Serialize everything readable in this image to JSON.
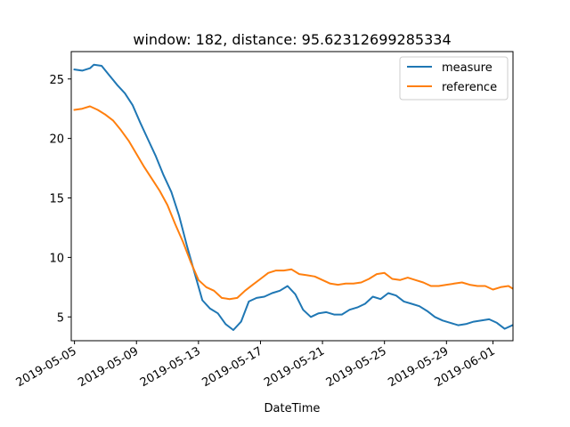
{
  "chart_data": {
    "type": "line",
    "title": "window: 182, distance: 95.62312699285334",
    "xlabel": "DateTime",
    "ylabel": "",
    "xlim": [
      "2019-05-04T19:00",
      "2019-06-02T07:00"
    ],
    "ylim": [
      3.0,
      27.3
    ],
    "grid": false,
    "legend_position": "upper right",
    "x_ticks": [
      "2019-05-05",
      "2019-05-09",
      "2019-05-13",
      "2019-05-17",
      "2019-05-21",
      "2019-05-25",
      "2019-05-29",
      "2019-06-01"
    ],
    "y_ticks": [
      5,
      10,
      15,
      20,
      25
    ],
    "series": [
      {
        "name": "measure",
        "color": "#1f77b4",
        "points": [
          [
            "2019-05-05T00:00",
            25.8
          ],
          [
            "2019-05-05T12:00",
            25.7
          ],
          [
            "2019-05-06T00:00",
            25.9
          ],
          [
            "2019-05-06T06:00",
            26.2
          ],
          [
            "2019-05-06T18:00",
            26.1
          ],
          [
            "2019-05-07T06:00",
            25.3
          ],
          [
            "2019-05-07T18:00",
            24.5
          ],
          [
            "2019-05-08T06:00",
            23.8
          ],
          [
            "2019-05-08T18:00",
            22.8
          ],
          [
            "2019-05-09T06:00",
            21.3
          ],
          [
            "2019-05-09T18:00",
            19.9
          ],
          [
            "2019-05-10T06:00",
            18.5
          ],
          [
            "2019-05-10T18:00",
            16.9
          ],
          [
            "2019-05-11T06:00",
            15.5
          ],
          [
            "2019-05-11T18:00",
            13.5
          ],
          [
            "2019-05-12T06:00",
            11.0
          ],
          [
            "2019-05-12T18:00",
            8.7
          ],
          [
            "2019-05-13T06:00",
            6.4
          ],
          [
            "2019-05-13T18:00",
            5.7
          ],
          [
            "2019-05-14T06:00",
            5.3
          ],
          [
            "2019-05-14T18:00",
            4.4
          ],
          [
            "2019-05-15T06:00",
            3.9
          ],
          [
            "2019-05-15T18:00",
            4.6
          ],
          [
            "2019-05-16T06:00",
            6.3
          ],
          [
            "2019-05-16T18:00",
            6.6
          ],
          [
            "2019-05-17T06:00",
            6.7
          ],
          [
            "2019-05-17T18:00",
            7.0
          ],
          [
            "2019-05-18T06:00",
            7.2
          ],
          [
            "2019-05-18T18:00",
            7.6
          ],
          [
            "2019-05-19T06:00",
            6.9
          ],
          [
            "2019-05-19T18:00",
            5.6
          ],
          [
            "2019-05-20T06:00",
            5.0
          ],
          [
            "2019-05-20T18:00",
            5.3
          ],
          [
            "2019-05-21T06:00",
            5.4
          ],
          [
            "2019-05-21T18:00",
            5.2
          ],
          [
            "2019-05-22T06:00",
            5.2
          ],
          [
            "2019-05-22T18:00",
            5.6
          ],
          [
            "2019-05-23T06:00",
            5.8
          ],
          [
            "2019-05-23T18:00",
            6.1
          ],
          [
            "2019-05-24T06:00",
            6.7
          ],
          [
            "2019-05-24T18:00",
            6.5
          ],
          [
            "2019-05-25T06:00",
            7.0
          ],
          [
            "2019-05-25T18:00",
            6.8
          ],
          [
            "2019-05-26T06:00",
            6.3
          ],
          [
            "2019-05-26T18:00",
            6.1
          ],
          [
            "2019-05-27T06:00",
            5.9
          ],
          [
            "2019-05-27T18:00",
            5.5
          ],
          [
            "2019-05-28T06:00",
            5.0
          ],
          [
            "2019-05-28T18:00",
            4.7
          ],
          [
            "2019-05-29T06:00",
            4.5
          ],
          [
            "2019-05-29T18:00",
            4.3
          ],
          [
            "2019-05-30T06:00",
            4.4
          ],
          [
            "2019-05-30T18:00",
            4.6
          ],
          [
            "2019-05-31T06:00",
            4.7
          ],
          [
            "2019-05-31T18:00",
            4.8
          ],
          [
            "2019-06-01T06:00",
            4.5
          ],
          [
            "2019-06-01T18:00",
            4.0
          ],
          [
            "2019-06-02T06:00",
            4.3
          ]
        ]
      },
      {
        "name": "reference",
        "color": "#ff7f0e",
        "points": [
          [
            "2019-05-05T00:00",
            22.4
          ],
          [
            "2019-05-05T12:00",
            22.5
          ],
          [
            "2019-05-06T00:00",
            22.7
          ],
          [
            "2019-05-06T12:00",
            22.4
          ],
          [
            "2019-05-07T00:00",
            22.0
          ],
          [
            "2019-05-07T12:00",
            21.5
          ],
          [
            "2019-05-08T00:00",
            20.7
          ],
          [
            "2019-05-08T12:00",
            19.8
          ],
          [
            "2019-05-09T00:00",
            18.7
          ],
          [
            "2019-05-09T12:00",
            17.6
          ],
          [
            "2019-05-10T00:00",
            16.6
          ],
          [
            "2019-05-10T12:00",
            15.6
          ],
          [
            "2019-05-11T00:00",
            14.4
          ],
          [
            "2019-05-11T12:00",
            12.8
          ],
          [
            "2019-05-12T00:00",
            11.3
          ],
          [
            "2019-05-12T12:00",
            9.6
          ],
          [
            "2019-05-13T00:00",
            8.1
          ],
          [
            "2019-05-13T12:00",
            7.5
          ],
          [
            "2019-05-14T00:00",
            7.2
          ],
          [
            "2019-05-14T12:00",
            6.6
          ],
          [
            "2019-05-15T00:00",
            6.5
          ],
          [
            "2019-05-15T12:00",
            6.6
          ],
          [
            "2019-05-16T00:00",
            7.2
          ],
          [
            "2019-05-16T12:00",
            7.7
          ],
          [
            "2019-05-17T00:00",
            8.2
          ],
          [
            "2019-05-17T12:00",
            8.7
          ],
          [
            "2019-05-18T00:00",
            8.9
          ],
          [
            "2019-05-18T12:00",
            8.9
          ],
          [
            "2019-05-19T00:00",
            9.0
          ],
          [
            "2019-05-19T12:00",
            8.6
          ],
          [
            "2019-05-20T00:00",
            8.5
          ],
          [
            "2019-05-20T12:00",
            8.4
          ],
          [
            "2019-05-21T00:00",
            8.1
          ],
          [
            "2019-05-21T12:00",
            7.8
          ],
          [
            "2019-05-22T00:00",
            7.7
          ],
          [
            "2019-05-22T12:00",
            7.8
          ],
          [
            "2019-05-23T00:00",
            7.8
          ],
          [
            "2019-05-23T12:00",
            7.9
          ],
          [
            "2019-05-24T00:00",
            8.2
          ],
          [
            "2019-05-24T12:00",
            8.6
          ],
          [
            "2019-05-25T00:00",
            8.7
          ],
          [
            "2019-05-25T12:00",
            8.2
          ],
          [
            "2019-05-26T00:00",
            8.1
          ],
          [
            "2019-05-26T12:00",
            8.3
          ],
          [
            "2019-05-27T00:00",
            8.1
          ],
          [
            "2019-05-27T12:00",
            7.9
          ],
          [
            "2019-05-28T00:00",
            7.6
          ],
          [
            "2019-05-28T12:00",
            7.6
          ],
          [
            "2019-05-29T00:00",
            7.7
          ],
          [
            "2019-05-29T12:00",
            7.8
          ],
          [
            "2019-05-30T00:00",
            7.9
          ],
          [
            "2019-05-30T12:00",
            7.7
          ],
          [
            "2019-05-31T00:00",
            7.6
          ],
          [
            "2019-05-31T12:00",
            7.6
          ],
          [
            "2019-06-01T00:00",
            7.3
          ],
          [
            "2019-06-01T12:00",
            7.5
          ],
          [
            "2019-06-02T00:00",
            7.6
          ],
          [
            "2019-06-02T06:00",
            7.4
          ]
        ]
      }
    ]
  }
}
